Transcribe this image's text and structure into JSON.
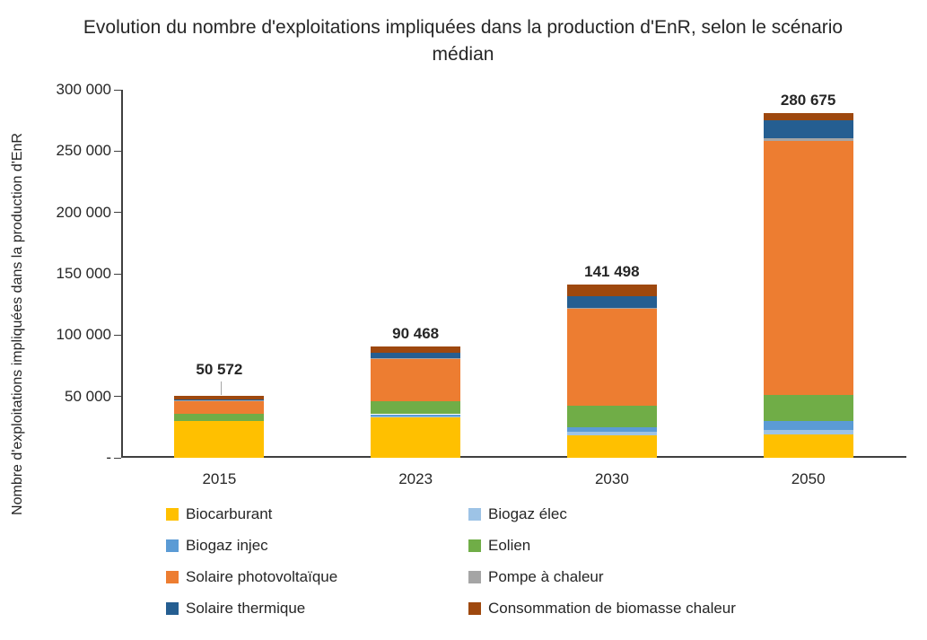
{
  "title": "Evolution du nombre d'exploitations impliquées dans la production d'EnR, selon le scénario médian",
  "y_axis_label": "Nombre d'exploitations impliquées dans la production d'EnR",
  "chart_data": {
    "type": "bar",
    "stacked": true,
    "title": "Evolution du nombre d'exploitations impliquées dans la production d'EnR, selon le scénario médian",
    "ylabel": "Nombre d'exploitations impliquées dans la production d'EnR",
    "xlabel": "",
    "grid": false,
    "legend_position": "bottom",
    "ylim": [
      0,
      300000
    ],
    "y_ticks": [
      "300 000",
      "250 000",
      "200 000",
      "150 000",
      "100 000",
      "50 000",
      "-"
    ],
    "categories": [
      "2015",
      "2023",
      "2030",
      "2050"
    ],
    "totals": [
      "50 572",
      "90 468",
      "141 498",
      "280 675"
    ],
    "total_values": [
      50572,
      90468,
      141498,
      280675
    ],
    "callout_leader_category": "2015",
    "series": [
      {
        "name": "Biocarburant",
        "color": "#FFC000",
        "values": [
          30000,
          33000,
          18500,
          19000
        ]
      },
      {
        "name": "Biogaz élec",
        "color": "#9DC3E6",
        "values": [
          0,
          1000,
          2400,
          3700
        ]
      },
      {
        "name": "Biogaz injec",
        "color": "#5B9BD5",
        "values": [
          0,
          1500,
          3700,
          7300
        ]
      },
      {
        "name": "Eolien",
        "color": "#70AD47",
        "values": [
          6000,
          10500,
          17600,
          21200
        ]
      },
      {
        "name": "Solaire photovoltaïque",
        "color": "#ED7D31",
        "values": [
          10500,
          35000,
          79300,
          206875
        ]
      },
      {
        "name": "Pompe à chaleur",
        "color": "#A5A5A5",
        "values": [
          100,
          468,
          1000,
          2400
        ]
      },
      {
        "name": "Solaire thermique",
        "color": "#255E91",
        "values": [
          800,
          4000,
          9300,
          14600
        ]
      },
      {
        "name": "Consommation de biomasse chaleur",
        "color": "#9E480E",
        "values": [
          3172,
          5000,
          9698,
          5600
        ]
      }
    ]
  }
}
